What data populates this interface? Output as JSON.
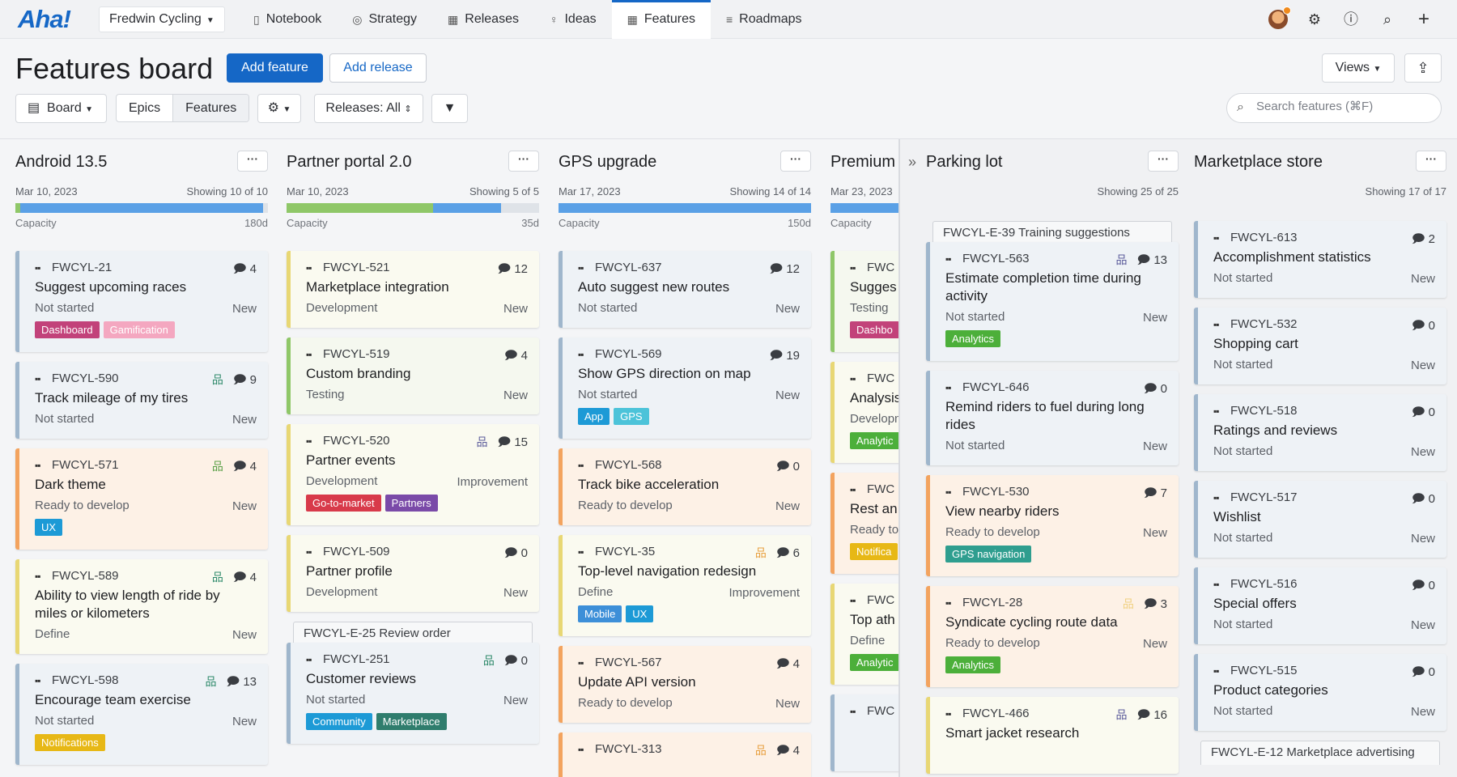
{
  "app": {
    "logo": "Aha!",
    "workspace": "Fredwin Cycling"
  },
  "nav": [
    {
      "label": "Notebook",
      "icon": "▯"
    },
    {
      "label": "Strategy",
      "icon": "◎"
    },
    {
      "label": "Releases",
      "icon": "▦"
    },
    {
      "label": "Ideas",
      "icon": "♀"
    },
    {
      "label": "Features",
      "icon": "▦",
      "active": true
    },
    {
      "label": "Roadmaps",
      "icon": "≡"
    }
  ],
  "header": {
    "title": "Features board",
    "add_feature": "Add feature",
    "add_release": "Add release",
    "views": "Views",
    "board_label": "Board",
    "seg_epics": "Epics",
    "seg_features": "Features",
    "releases_filter": "Releases: All",
    "search_placeholder": "Search features (⌘F)"
  },
  "colors": {
    "accent": "#1567c6"
  },
  "columns": [
    {
      "title": "Android 13.5",
      "date": "Mar 10, 2023",
      "showing": "Showing 10 of 10",
      "capacity_label": "Capacity",
      "capacity": "180d",
      "capacity_fill": [
        {
          "color": "#8fc768",
          "frac": 0.02
        },
        {
          "color": "#5aa0e6",
          "frac": 0.96
        }
      ],
      "cards": [
        {
          "id": "FWCYL-21",
          "name": "Suggest upcoming races",
          "status": "Not started",
          "type": "New",
          "count": "4",
          "hier": false,
          "cls": "s-not",
          "tags": [
            {
              "label": "Dashboard",
              "color": "#c2427a"
            },
            {
              "label": "Gamification",
              "color": "#f4a7c0"
            }
          ]
        },
        {
          "id": "FWCYL-590",
          "name": "Track mileage of my tires",
          "status": "Not started",
          "type": "New",
          "count": "9",
          "hier": true,
          "hier_color": "#2f8a6b",
          "cls": "s-not",
          "tags": []
        },
        {
          "id": "FWCYL-571",
          "name": "Dark theme",
          "status": "Ready to develop",
          "type": "New",
          "count": "4",
          "hier": true,
          "hier_color": "#5aa047",
          "cls": "s-ready",
          "tags": [
            {
              "label": "UX",
              "color": "#1d9ad6"
            }
          ]
        },
        {
          "id": "FWCYL-589",
          "name": "Ability to view length of ride by miles or kilometers",
          "status": "Define",
          "type": "New",
          "count": "4",
          "hier": true,
          "hier_color": "#2f8a6b",
          "cls": "s-define",
          "tags": []
        },
        {
          "id": "FWCYL-598",
          "name": "Encourage team exercise",
          "status": "Not started",
          "type": "New",
          "count": "13",
          "hier": true,
          "hier_color": "#2f8a6b",
          "cls": "s-not",
          "tags": [
            {
              "label": "Notifications",
              "color": "#e7b816"
            }
          ]
        }
      ]
    },
    {
      "title": "Partner portal 2.0",
      "date": "Mar 10, 2023",
      "showing": "Showing 5 of 5",
      "capacity_label": "Capacity",
      "capacity": "35d",
      "capacity_fill": [
        {
          "color": "#8fc768",
          "frac": 0.58
        },
        {
          "color": "#5aa0e6",
          "frac": 0.27
        }
      ],
      "cards": [
        {
          "id": "FWCYL-521",
          "name": "Marketplace integration",
          "status": "Development",
          "type": "New",
          "count": "12",
          "hier": false,
          "cls": "s-define",
          "tags": []
        },
        {
          "id": "FWCYL-519",
          "name": "Custom branding",
          "status": "Testing",
          "type": "New",
          "count": "4",
          "hier": false,
          "cls": "s-dev",
          "tags": []
        },
        {
          "id": "FWCYL-520",
          "name": "Partner events",
          "status": "Development",
          "type": "Improvement",
          "count": "15",
          "hier": true,
          "hier_color": "#5a5a9a",
          "cls": "s-define",
          "tags": [
            {
              "label": "Go-to-market",
              "color": "#d83a4a"
            },
            {
              "label": "Partners",
              "color": "#7a4aa8"
            }
          ]
        },
        {
          "id": "FWCYL-509",
          "name": "Partner profile",
          "status": "Development",
          "type": "New",
          "count": "0",
          "hier": false,
          "cls": "s-define",
          "tags": []
        },
        {
          "epic": "FWCYL-E-25 Review order",
          "id": "FWCYL-251",
          "name": "Customer reviews",
          "status": "Not started",
          "type": "New",
          "count": "0",
          "hier": true,
          "hier_color": "#2f8a6b",
          "cls": "s-not",
          "tags": [
            {
              "label": "Community",
              "color": "#1d9ad6"
            },
            {
              "label": "Marketplace",
              "color": "#2f7d6d"
            }
          ]
        }
      ]
    },
    {
      "title": "GPS upgrade",
      "date": "Mar 17, 2023",
      "showing": "Showing 14 of 14",
      "capacity_label": "Capacity",
      "capacity": "150d",
      "capacity_fill": [
        {
          "color": "#5aa0e6",
          "frac": 1.0
        }
      ],
      "cards": [
        {
          "id": "FWCYL-637",
          "name": "Auto suggest new routes",
          "status": "Not started",
          "type": "New",
          "count": "12",
          "hier": false,
          "cls": "s-not",
          "tags": []
        },
        {
          "id": "FWCYL-569",
          "name": "Show GPS direction on map",
          "status": "Not started",
          "type": "New",
          "count": "19",
          "hier": false,
          "cls": "s-not",
          "tags": [
            {
              "label": "App",
              "color": "#1d9ad6"
            },
            {
              "label": "GPS",
              "color": "#4cc3d9"
            }
          ]
        },
        {
          "id": "FWCYL-568",
          "name": "Track bike acceleration",
          "status": "Ready to develop",
          "type": "New",
          "count": "0",
          "hier": false,
          "cls": "s-ready",
          "tags": []
        },
        {
          "id": "FWCYL-35",
          "name": "Top-level navigation redesign",
          "status": "Define",
          "type": "Improvement",
          "count": "6",
          "hier": true,
          "hier_color": "#e8a040",
          "cls": "s-define",
          "tags": [
            {
              "label": "Mobile",
              "color": "#3d8fd8"
            },
            {
              "label": "UX",
              "color": "#1d9ad6"
            }
          ]
        },
        {
          "id": "FWCYL-567",
          "name": "Update API version",
          "status": "Ready to develop",
          "type": "New",
          "count": "4",
          "hier": false,
          "cls": "s-ready",
          "tags": []
        },
        {
          "id": "FWCYL-313",
          "name": "",
          "status": "",
          "type": "",
          "count": "4",
          "hier": true,
          "hier_color": "#e8a040",
          "cls": "s-ready",
          "tags": []
        }
      ]
    },
    {
      "title": "Premium",
      "date": "Mar 23, 2023",
      "showing": "",
      "capacity_label": "Capacity",
      "capacity": "",
      "capacity_fill": [
        {
          "color": "#5aa0e6",
          "frac": 1.0
        }
      ],
      "cards": [
        {
          "id": "FWC",
          "name": "Sugges history",
          "status": "Testing",
          "type": "",
          "count": "",
          "hier": false,
          "cls": "s-dev",
          "tags": [
            {
              "label": "Dashbo",
              "color": "#c2427a"
            }
          ]
        },
        {
          "id": "FWC",
          "name": "Analysis",
          "status": "Developm",
          "type": "",
          "count": "",
          "hier": false,
          "cls": "s-define",
          "tags": [
            {
              "label": "Analytic",
              "color": "#4caf3a"
            }
          ]
        },
        {
          "id": "FWC",
          "name": "Rest an",
          "status": "Ready to",
          "type": "",
          "count": "",
          "hier": false,
          "cls": "s-ready",
          "tags": [
            {
              "label": "Notifica",
              "color": "#e7b816"
            }
          ]
        },
        {
          "id": "FWC",
          "name": "Top ath",
          "status": "Define",
          "type": "",
          "count": "",
          "hier": false,
          "cls": "s-define",
          "tags": [
            {
              "label": "Analytic",
              "color": "#4caf3a"
            }
          ]
        },
        {
          "id": "FWC",
          "name": "",
          "status": "",
          "type": "",
          "count": "",
          "hier": false,
          "cls": "s-not",
          "tags": []
        }
      ]
    }
  ],
  "right_columns": [
    {
      "title": "Parking lot",
      "showing": "Showing 25 of 25",
      "cards": [
        {
          "epic": "FWCYL-E-39 Training suggestions",
          "id": "FWCYL-563",
          "name": "Estimate completion time during activity",
          "status": "Not started",
          "type": "New",
          "count": "13",
          "hier": true,
          "hier_color": "#5a5a9a",
          "cls": "s-not",
          "tags": [
            {
              "label": "Analytics",
              "color": "#4caf3a"
            }
          ]
        },
        {
          "id": "FWCYL-646",
          "name": "Remind riders to fuel during long rides",
          "status": "Not started",
          "type": "New",
          "count": "0",
          "hier": false,
          "cls": "s-not",
          "tags": []
        },
        {
          "id": "FWCYL-530",
          "name": "View nearby riders",
          "status": "Ready to develop",
          "type": "New",
          "count": "7",
          "hier": false,
          "cls": "s-ready",
          "tags": [
            {
              "label": "GPS navigation",
              "color": "#2f9e8f"
            }
          ]
        },
        {
          "id": "FWCYL-28",
          "name": "Syndicate cycling route data",
          "status": "Ready to develop",
          "type": "New",
          "count": "3",
          "hier": true,
          "hier_color": "#f0d080",
          "cls": "s-ready",
          "tags": [
            {
              "label": "Analytics",
              "color": "#4caf3a"
            }
          ]
        },
        {
          "id": "FWCYL-466",
          "name": "Smart jacket research",
          "status": "",
          "type": "",
          "count": "16",
          "hier": true,
          "hier_color": "#5a5a9a",
          "cls": "s-define",
          "tags": []
        }
      ]
    },
    {
      "title": "Marketplace store",
      "showing": "Showing 17 of 17",
      "cards": [
        {
          "id": "FWCYL-613",
          "name": "Accomplishment statistics",
          "status": "Not started",
          "type": "New",
          "count": "2",
          "hier": false,
          "cls": "s-not",
          "tags": []
        },
        {
          "id": "FWCYL-532",
          "name": "Shopping cart",
          "status": "Not started",
          "type": "New",
          "count": "0",
          "hier": false,
          "cls": "s-not",
          "tags": []
        },
        {
          "id": "FWCYL-518",
          "name": "Ratings and reviews",
          "status": "Not started",
          "type": "New",
          "count": "0",
          "hier": false,
          "cls": "s-not",
          "tags": []
        },
        {
          "id": "FWCYL-517",
          "name": "Wishlist",
          "status": "Not started",
          "type": "New",
          "count": "0",
          "hier": false,
          "cls": "s-not",
          "tags": []
        },
        {
          "id": "FWCYL-516",
          "name": "Special offers",
          "status": "Not started",
          "type": "New",
          "count": "0",
          "hier": false,
          "cls": "s-not",
          "tags": []
        },
        {
          "id": "FWCYL-515",
          "name": "Product categories",
          "status": "Not started",
          "type": "New",
          "count": "0",
          "hier": false,
          "cls": "s-not",
          "tags": []
        },
        {
          "epic_only": "FWCYL-E-12 Marketplace advertising"
        }
      ]
    }
  ]
}
